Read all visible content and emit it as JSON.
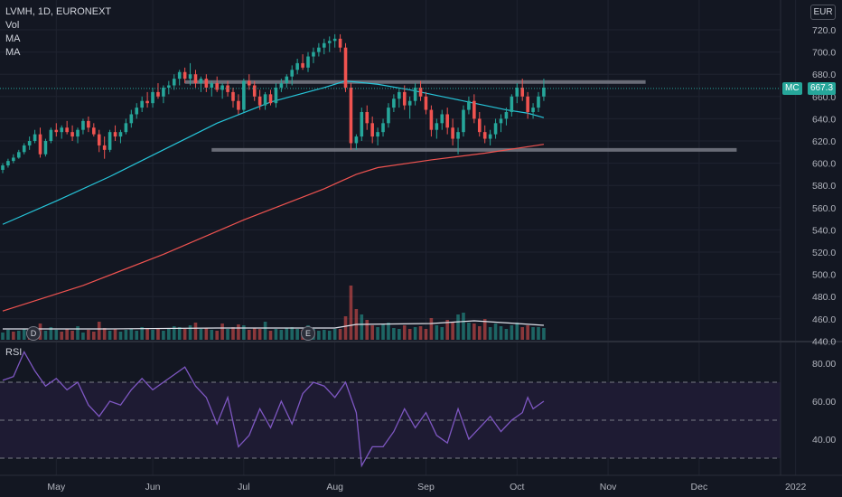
{
  "header": {
    "symbol_line": "LVMH, 1D, EURONEXT",
    "indicators": [
      "Vol",
      "MA",
      "MA"
    ],
    "currency": "EUR",
    "rsi_label": "RSI"
  },
  "price_badges": {
    "ticker": "MC",
    "last": "667.3"
  },
  "event_markers": [
    {
      "label": "D",
      "date_index": 6
    },
    {
      "label": "E",
      "date_index": 57
    }
  ],
  "colors": {
    "background": "#131722",
    "up": "#26a69a",
    "down": "#ef5350",
    "ma_short": "#26c6da",
    "ma_long": "#ef5350",
    "rsi_line": "#7e57c2",
    "rsi_band": "#1e1b33",
    "resistance": "#787b86"
  },
  "chart_data": {
    "type": "candlestick",
    "price_axis": {
      "ticks": [
        440,
        460,
        480,
        500,
        520,
        540,
        560,
        580,
        600,
        620,
        640,
        660,
        680,
        700,
        720
      ],
      "labels": [
        "440.0",
        "460.0",
        "480.0",
        "500.0",
        "520.0",
        "540.0",
        "560.0",
        "580.0",
        "600.0",
        "620.0",
        "640.0",
        "660.0",
        "680.0",
        "700.0",
        "720.0"
      ]
    },
    "rsi_axis": {
      "ticks": [
        40,
        60,
        80
      ],
      "labels": [
        "40.00",
        "60.00",
        "80.00"
      ],
      "levels": [
        30,
        50,
        70
      ]
    },
    "time_labels": [
      {
        "label": "May",
        "index": 10
      },
      {
        "label": "Jun",
        "index": 28
      },
      {
        "label": "Jul",
        "index": 45
      },
      {
        "label": "Aug",
        "index": 62
      },
      {
        "label": "Sep",
        "index": 79
      },
      {
        "label": "Oct",
        "index": 96
      },
      {
        "label": "Nov",
        "index": 113
      },
      {
        "label": "Dec",
        "index": 130
      },
      {
        "label": "2022",
        "index": 148
      }
    ],
    "resistance_levels": [
      {
        "price": 673,
        "from_index": 34,
        "to_index": 120
      },
      {
        "price": 612,
        "from_index": 39,
        "to_index": 137
      }
    ],
    "ohlc": [
      [
        594,
        600,
        591,
        598
      ],
      [
        598,
        604,
        596,
        602
      ],
      [
        602,
        608,
        600,
        605
      ],
      [
        605,
        612,
        604,
        610
      ],
      [
        610,
        618,
        608,
        616
      ],
      [
        616,
        624,
        612,
        620
      ],
      [
        620,
        630,
        618,
        626
      ],
      [
        626,
        632,
        605,
        608
      ],
      [
        608,
        622,
        606,
        620
      ],
      [
        620,
        632,
        618,
        630
      ],
      [
        630,
        636,
        624,
        628
      ],
      [
        628,
        634,
        622,
        632
      ],
      [
        632,
        638,
        626,
        628
      ],
      [
        628,
        634,
        620,
        624
      ],
      [
        624,
        632,
        618,
        630
      ],
      [
        630,
        640,
        626,
        638
      ],
      [
        638,
        642,
        628,
        632
      ],
      [
        632,
        636,
        624,
        626
      ],
      [
        626,
        630,
        610,
        616
      ],
      [
        616,
        624,
        604,
        612
      ],
      [
        612,
        630,
        610,
        628
      ],
      [
        628,
        634,
        620,
        624
      ],
      [
        624,
        630,
        618,
        628
      ],
      [
        628,
        640,
        626,
        636
      ],
      [
        636,
        648,
        632,
        644
      ],
      [
        644,
        654,
        640,
        650
      ],
      [
        650,
        660,
        646,
        656
      ],
      [
        656,
        664,
        650,
        654
      ],
      [
        654,
        668,
        650,
        664
      ],
      [
        664,
        672,
        658,
        660
      ],
      [
        660,
        670,
        654,
        668
      ],
      [
        668,
        674,
        662,
        670
      ],
      [
        670,
        680,
        666,
        676
      ],
      [
        676,
        684,
        670,
        682
      ],
      [
        682,
        686,
        672,
        676
      ],
      [
        676,
        690,
        670,
        680
      ],
      [
        680,
        684,
        668,
        672
      ],
      [
        672,
        678,
        664,
        676
      ],
      [
        676,
        680,
        664,
        668
      ],
      [
        668,
        674,
        660,
        672
      ],
      [
        672,
        678,
        664,
        666
      ],
      [
        666,
        672,
        658,
        670
      ],
      [
        670,
        674,
        660,
        664
      ],
      [
        664,
        668,
        650,
        656
      ],
      [
        656,
        662,
        644,
        648
      ],
      [
        648,
        676,
        646,
        674
      ],
      [
        674,
        680,
        666,
        670
      ],
      [
        670,
        674,
        656,
        660
      ],
      [
        660,
        666,
        648,
        652
      ],
      [
        652,
        664,
        648,
        662
      ],
      [
        662,
        666,
        652,
        654
      ],
      [
        654,
        672,
        650,
        668
      ],
      [
        668,
        676,
        664,
        672
      ],
      [
        672,
        680,
        668,
        678
      ],
      [
        678,
        688,
        670,
        684
      ],
      [
        684,
        694,
        680,
        690
      ],
      [
        690,
        698,
        684,
        686
      ],
      [
        686,
        700,
        682,
        696
      ],
      [
        696,
        704,
        690,
        700
      ],
      [
        700,
        708,
        696,
        704
      ],
      [
        704,
        712,
        698,
        708
      ],
      [
        708,
        714,
        700,
        710
      ],
      [
        710,
        716,
        704,
        712
      ],
      [
        712,
        716,
        700,
        704
      ],
      [
        704,
        708,
        664,
        668
      ],
      [
        668,
        672,
        612,
        618
      ],
      [
        618,
        626,
        612,
        624
      ],
      [
        624,
        650,
        620,
        646
      ],
      [
        646,
        652,
        630,
        636
      ],
      [
        636,
        642,
        618,
        624
      ],
      [
        624,
        632,
        616,
        628
      ],
      [
        628,
        640,
        624,
        636
      ],
      [
        636,
        654,
        632,
        650
      ],
      [
        650,
        662,
        646,
        658
      ],
      [
        658,
        668,
        650,
        664
      ],
      [
        664,
        670,
        648,
        652
      ],
      [
        652,
        660,
        640,
        656
      ],
      [
        656,
        672,
        652,
        668
      ],
      [
        668,
        674,
        656,
        660
      ],
      [
        660,
        664,
        644,
        648
      ],
      [
        648,
        652,
        624,
        630
      ],
      [
        630,
        640,
        622,
        636
      ],
      [
        636,
        648,
        630,
        644
      ],
      [
        644,
        650,
        626,
        632
      ],
      [
        632,
        640,
        616,
        622
      ],
      [
        622,
        632,
        608,
        628
      ],
      [
        628,
        652,
        624,
        648
      ],
      [
        648,
        660,
        644,
        656
      ],
      [
        656,
        662,
        636,
        640
      ],
      [
        640,
        646,
        624,
        628
      ],
      [
        628,
        634,
        618,
        622
      ],
      [
        622,
        630,
        616,
        626
      ],
      [
        626,
        640,
        622,
        636
      ],
      [
        636,
        644,
        628,
        640
      ],
      [
        640,
        650,
        634,
        646
      ],
      [
        646,
        662,
        642,
        660
      ],
      [
        660,
        672,
        654,
        668
      ],
      [
        668,
        676,
        656,
        660
      ],
      [
        660,
        664,
        640,
        646
      ],
      [
        646,
        654,
        640,
        650
      ],
      [
        650,
        664,
        646,
        660
      ],
      [
        660,
        676,
        656,
        668
      ]
    ],
    "volume": [
      [
        8,
        1
      ],
      [
        11,
        1
      ],
      [
        9,
        0
      ],
      [
        10,
        1
      ],
      [
        12,
        1
      ],
      [
        9,
        0
      ],
      [
        13,
        0
      ],
      [
        18,
        0
      ],
      [
        10,
        1
      ],
      [
        14,
        1
      ],
      [
        11,
        1
      ],
      [
        9,
        0
      ],
      [
        12,
        0
      ],
      [
        10,
        0
      ],
      [
        15,
        1
      ],
      [
        8,
        1
      ],
      [
        11,
        0
      ],
      [
        9,
        0
      ],
      [
        20,
        0
      ],
      [
        13,
        0
      ],
      [
        10,
        1
      ],
      [
        12,
        0
      ],
      [
        9,
        1
      ],
      [
        11,
        1
      ],
      [
        12,
        1
      ],
      [
        10,
        1
      ],
      [
        14,
        1
      ],
      [
        13,
        0
      ],
      [
        11,
        1
      ],
      [
        12,
        0
      ],
      [
        10,
        1
      ],
      [
        13,
        1
      ],
      [
        15,
        1
      ],
      [
        14,
        1
      ],
      [
        12,
        0
      ],
      [
        16,
        1
      ],
      [
        19,
        0
      ],
      [
        12,
        1
      ],
      [
        13,
        0
      ],
      [
        11,
        1
      ],
      [
        10,
        0
      ],
      [
        18,
        0
      ],
      [
        12,
        1
      ],
      [
        14,
        0
      ],
      [
        17,
        0
      ],
      [
        16,
        1
      ],
      [
        11,
        0
      ],
      [
        13,
        0
      ],
      [
        12,
        0
      ],
      [
        20,
        1
      ],
      [
        10,
        0
      ],
      [
        12,
        1
      ],
      [
        11,
        1
      ],
      [
        13,
        1
      ],
      [
        14,
        1
      ],
      [
        12,
        1
      ],
      [
        11,
        0
      ],
      [
        16,
        1
      ],
      [
        12,
        1
      ],
      [
        10,
        1
      ],
      [
        11,
        1
      ],
      [
        10,
        1
      ],
      [
        12,
        1
      ],
      [
        12,
        0
      ],
      [
        26,
        0
      ],
      [
        60,
        0
      ],
      [
        34,
        0
      ],
      [
        28,
        1
      ],
      [
        22,
        0
      ],
      [
        16,
        0
      ],
      [
        14,
        1
      ],
      [
        17,
        1
      ],
      [
        19,
        1
      ],
      [
        13,
        1
      ],
      [
        12,
        1
      ],
      [
        16,
        0
      ],
      [
        12,
        0
      ],
      [
        14,
        1
      ],
      [
        15,
        0
      ],
      [
        12,
        0
      ],
      [
        24,
        0
      ],
      [
        16,
        1
      ],
      [
        14,
        1
      ],
      [
        22,
        0
      ],
      [
        20,
        0
      ],
      [
        28,
        1
      ],
      [
        30,
        1
      ],
      [
        19,
        1
      ],
      [
        18,
        0
      ],
      [
        15,
        0
      ],
      [
        23,
        0
      ],
      [
        14,
        1
      ],
      [
        18,
        1
      ],
      [
        15,
        1
      ],
      [
        12,
        1
      ],
      [
        16,
        1
      ],
      [
        19,
        1
      ],
      [
        14,
        0
      ],
      [
        16,
        0
      ],
      [
        14,
        1
      ],
      [
        14,
        1
      ],
      [
        13,
        1
      ]
    ],
    "ma_short": [
      [
        0,
        545
      ],
      [
        10,
        566
      ],
      [
        20,
        588
      ],
      [
        30,
        612
      ],
      [
        40,
        636
      ],
      [
        50,
        655
      ],
      [
        60,
        668
      ],
      [
        64,
        674
      ],
      [
        70,
        671
      ],
      [
        76,
        666
      ],
      [
        82,
        660
      ],
      [
        88,
        654
      ],
      [
        94,
        648
      ],
      [
        98,
        645
      ],
      [
        101,
        641
      ]
    ],
    "ma_long": [
      [
        0,
        467
      ],
      [
        15,
        490
      ],
      [
        30,
        518
      ],
      [
        45,
        549
      ],
      [
        60,
        577
      ],
      [
        66,
        590
      ],
      [
        70,
        596
      ],
      [
        80,
        603
      ],
      [
        90,
        609
      ],
      [
        101,
        617
      ]
    ],
    "vol_ma": [
      [
        0,
        12
      ],
      [
        20,
        12
      ],
      [
        40,
        13
      ],
      [
        62,
        13
      ],
      [
        66,
        17
      ],
      [
        80,
        18
      ],
      [
        88,
        21
      ],
      [
        96,
        18
      ],
      [
        101,
        16
      ]
    ],
    "rsi": [
      [
        0,
        71
      ],
      [
        2,
        73
      ],
      [
        4,
        86
      ],
      [
        6,
        76
      ],
      [
        8,
        68
      ],
      [
        10,
        72
      ],
      [
        12,
        66
      ],
      [
        14,
        70
      ],
      [
        16,
        58
      ],
      [
        18,
        52
      ],
      [
        20,
        60
      ],
      [
        22,
        58
      ],
      [
        24,
        66
      ],
      [
        26,
        72
      ],
      [
        28,
        66
      ],
      [
        30,
        70
      ],
      [
        32,
        74
      ],
      [
        34,
        78
      ],
      [
        36,
        68
      ],
      [
        38,
        62
      ],
      [
        40,
        48
      ],
      [
        42,
        62
      ],
      [
        44,
        36
      ],
      [
        46,
        42
      ],
      [
        48,
        56
      ],
      [
        50,
        46
      ],
      [
        52,
        60
      ],
      [
        54,
        48
      ],
      [
        56,
        64
      ],
      [
        58,
        70
      ],
      [
        60,
        68
      ],
      [
        62,
        62
      ],
      [
        64,
        70
      ],
      [
        66,
        54
      ],
      [
        67,
        26
      ],
      [
        69,
        36
      ],
      [
        71,
        36
      ],
      [
        73,
        44
      ],
      [
        75,
        56
      ],
      [
        77,
        46
      ],
      [
        79,
        54
      ],
      [
        81,
        42
      ],
      [
        83,
        38
      ],
      [
        85,
        56
      ],
      [
        87,
        40
      ],
      [
        89,
        46
      ],
      [
        91,
        52
      ],
      [
        93,
        44
      ],
      [
        95,
        50
      ],
      [
        97,
        54
      ],
      [
        98,
        62
      ],
      [
        99,
        56
      ],
      [
        101,
        60
      ]
    ]
  }
}
